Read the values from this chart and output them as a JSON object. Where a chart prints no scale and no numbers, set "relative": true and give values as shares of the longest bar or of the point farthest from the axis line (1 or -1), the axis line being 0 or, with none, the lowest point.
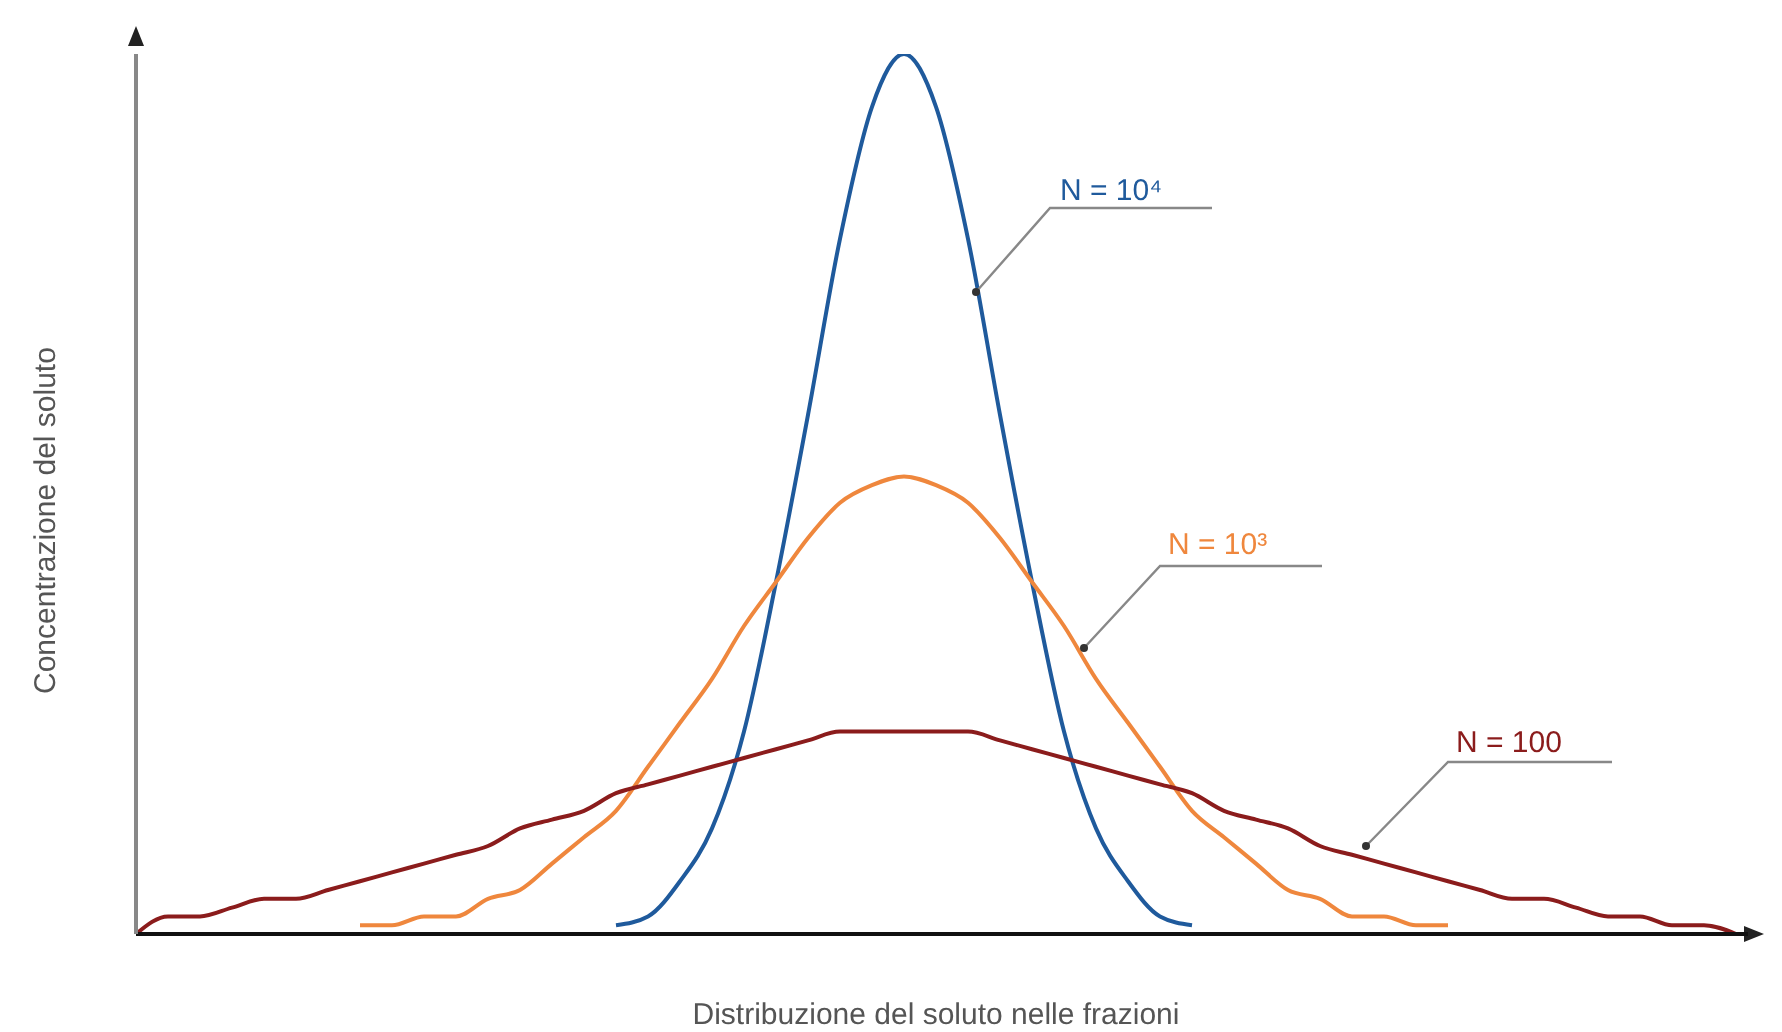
{
  "chart_data": {
    "type": "line",
    "xlabel": "Distribuzione del soluto nelle frazioni",
    "ylabel": "Concentrazione del soluto",
    "relative": true,
    "marker": "none",
    "line_style": "solid",
    "legend": false,
    "categories": [
      null,
      null,
      null,
      null,
      null,
      null,
      null,
      null,
      null,
      null,
      null,
      null,
      null,
      null,
      null,
      null,
      null,
      null,
      null,
      null,
      null,
      null,
      null,
      null,
      null,
      null,
      null,
      null,
      null,
      null,
      null,
      null,
      null,
      null,
      null,
      null,
      null,
      null,
      null,
      null,
      null,
      null,
      null,
      null,
      null,
      null,
      null,
      null,
      null,
      null,
      null
    ],
    "series": [
      {
        "name": "N = 10⁴",
        "color": "#1f5a9c",
        "values": [
          null,
          null,
          null,
          null,
          null,
          null,
          null,
          null,
          null,
          null,
          null,
          null,
          null,
          null,
          null,
          0.01,
          0.02,
          0.06,
          0.12,
          0.23,
          0.4,
          0.59,
          0.79,
          0.94,
          1,
          0.94,
          0.79,
          0.59,
          0.4,
          0.23,
          0.12,
          0.06,
          0.02,
          0.01,
          null,
          null,
          null,
          null,
          null,
          null,
          null,
          null,
          null,
          null,
          null,
          null,
          null,
          null,
          null,
          null,
          null
        ]
      },
      {
        "name": "N = 10³",
        "color": "#ef873d",
        "values": [
          null,
          null,
          null,
          null,
          null,
          null,
          null,
          0.01,
          0.01,
          0.02,
          0.02,
          0.04,
          0.05,
          0.08,
          0.11,
          0.14,
          0.19,
          0.24,
          0.29,
          0.35,
          0.4,
          0.45,
          0.49,
          0.51,
          0.52,
          0.51,
          0.49,
          0.45,
          0.4,
          0.35,
          0.29,
          0.24,
          0.19,
          0.14,
          0.11,
          0.08,
          0.05,
          0.04,
          0.02,
          0.02,
          0.01,
          0.01,
          null,
          null,
          null,
          null,
          null,
          null,
          null,
          null,
          null
        ]
      },
      {
        "name": "N = 100",
        "color": "#8b1c1c",
        "values": [
          0,
          0.02,
          0.02,
          0.03,
          0.04,
          0.04,
          0.05,
          0.06,
          0.07,
          0.08,
          0.09,
          0.1,
          0.12,
          0.13,
          0.14,
          0.16,
          0.17,
          0.18,
          0.19,
          0.2,
          0.21,
          0.22,
          0.23,
          0.23,
          0.23,
          0.23,
          0.23,
          0.22,
          0.21,
          0.2,
          0.19,
          0.18,
          0.17,
          0.16,
          0.14,
          0.13,
          0.12,
          0.1,
          0.09,
          0.08,
          0.07,
          0.06,
          0.05,
          0.04,
          0.04,
          0.03,
          0.02,
          0.02,
          0.01,
          0.01,
          0
        ]
      }
    ]
  }
}
